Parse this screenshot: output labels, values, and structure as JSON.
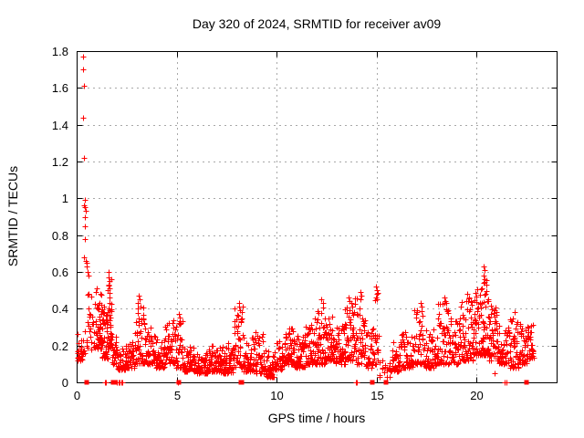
{
  "chart_data": {
    "type": "scatter",
    "title": "Day 320 of 2024, SRMTID for receiver av09",
    "xlabel": "GPS time / hours",
    "ylabel": "SRMTID / TECUs",
    "xlim": [
      0,
      24
    ],
    "ylim": [
      0,
      1.8
    ],
    "xticks": {
      "values": [
        0,
        5,
        10,
        15,
        20
      ],
      "labels": [
        "0",
        "5",
        "10",
        "15",
        "20"
      ]
    },
    "yticks": {
      "values": [
        0,
        0.2,
        0.4,
        0.6,
        0.8,
        1.0,
        1.2,
        1.4,
        1.6,
        1.8
      ],
      "labels": [
        "0",
        "0.2",
        "0.4",
        "0.6",
        "0.8",
        "1",
        "1.2",
        "1.4",
        "1.6",
        "1.8"
      ]
    },
    "grid": true,
    "legend": "none",
    "marker": {
      "shape": "plus",
      "color": "#ff0000",
      "size": 7
    },
    "colors": {
      "points": "#ff0000",
      "border": "#000000",
      "grid": "#a8a8a8",
      "text": "#000000",
      "background": "#ffffff"
    },
    "seed": 7,
    "profile_bins_format": [
      "t_start_hours",
      "t_end_hours",
      "n_points",
      "y_min_TECUs",
      "y_max_TECUs"
    ],
    "profile": [
      [
        0.02,
        0.28,
        24,
        0.12,
        0.27
      ],
      [
        0.28,
        0.52,
        10,
        0.15,
        0.3
      ],
      [
        0.52,
        0.95,
        26,
        0.18,
        0.5
      ],
      [
        0.95,
        1.25,
        48,
        0.18,
        0.52
      ],
      [
        1.25,
        1.55,
        46,
        0.13,
        0.42
      ],
      [
        1.55,
        1.75,
        30,
        0.18,
        0.58
      ],
      [
        1.75,
        2.0,
        24,
        0.1,
        0.25
      ],
      [
        2.0,
        2.5,
        40,
        0.07,
        0.2
      ],
      [
        2.5,
        2.9,
        38,
        0.08,
        0.22
      ],
      [
        2.9,
        3.4,
        50,
        0.1,
        0.44
      ],
      [
        3.4,
        3.9,
        46,
        0.1,
        0.3
      ],
      [
        3.9,
        4.4,
        44,
        0.08,
        0.25
      ],
      [
        4.4,
        4.9,
        46,
        0.1,
        0.34
      ],
      [
        4.9,
        5.3,
        36,
        0.08,
        0.34
      ],
      [
        5.3,
        6.0,
        62,
        0.06,
        0.2
      ],
      [
        6.0,
        6.6,
        58,
        0.05,
        0.18
      ],
      [
        6.6,
        7.2,
        60,
        0.06,
        0.2
      ],
      [
        7.2,
        7.8,
        60,
        0.05,
        0.22
      ],
      [
        7.8,
        8.35,
        52,
        0.08,
        0.42
      ],
      [
        8.35,
        8.9,
        50,
        0.06,
        0.25
      ],
      [
        8.9,
        9.4,
        46,
        0.05,
        0.28
      ],
      [
        9.4,
        9.9,
        38,
        0.03,
        0.18
      ],
      [
        9.9,
        10.4,
        46,
        0.07,
        0.25
      ],
      [
        10.4,
        10.9,
        50,
        0.1,
        0.3
      ],
      [
        10.9,
        11.4,
        50,
        0.08,
        0.26
      ],
      [
        11.4,
        11.9,
        52,
        0.1,
        0.32
      ],
      [
        11.9,
        12.4,
        54,
        0.1,
        0.42
      ],
      [
        12.4,
        12.9,
        54,
        0.12,
        0.38
      ],
      [
        12.9,
        13.4,
        50,
        0.1,
        0.35
      ],
      [
        13.4,
        13.9,
        54,
        0.12,
        0.44
      ],
      [
        13.9,
        14.45,
        46,
        0.1,
        0.47
      ],
      [
        14.45,
        14.8,
        28,
        0.08,
        0.3
      ],
      [
        14.8,
        15.1,
        24,
        0.1,
        0.5
      ],
      [
        15.1,
        15.7,
        16,
        0.03,
        0.15
      ],
      [
        15.7,
        16.2,
        40,
        0.06,
        0.22
      ],
      [
        16.2,
        16.8,
        50,
        0.08,
        0.28
      ],
      [
        16.8,
        17.4,
        52,
        0.1,
        0.4
      ],
      [
        17.4,
        18.0,
        50,
        0.08,
        0.3
      ],
      [
        18.0,
        18.6,
        54,
        0.1,
        0.44
      ],
      [
        18.6,
        19.2,
        54,
        0.1,
        0.35
      ],
      [
        19.2,
        19.8,
        58,
        0.12,
        0.46
      ],
      [
        19.8,
        20.25,
        54,
        0.15,
        0.52
      ],
      [
        20.25,
        20.6,
        48,
        0.15,
        0.58
      ],
      [
        20.6,
        21.1,
        50,
        0.12,
        0.42
      ],
      [
        21.1,
        21.6,
        44,
        0.1,
        0.34
      ],
      [
        21.6,
        22.1,
        44,
        0.08,
        0.36
      ],
      [
        22.1,
        22.5,
        40,
        0.1,
        0.32
      ],
      [
        22.5,
        22.85,
        36,
        0.13,
        0.33
      ]
    ],
    "outliers": [
      [
        0.33,
        1.77
      ],
      [
        0.34,
        1.7
      ],
      [
        0.35,
        1.61
      ],
      [
        0.34,
        1.44
      ],
      [
        0.35,
        1.22
      ],
      [
        0.4,
        0.99
      ],
      [
        0.38,
        0.96
      ],
      [
        0.42,
        0.95
      ],
      [
        0.44,
        0.93
      ],
      [
        0.41,
        0.9
      ],
      [
        0.42,
        0.85
      ],
      [
        0.43,
        0.78
      ],
      [
        0.38,
        0.68
      ],
      [
        0.46,
        0.66
      ],
      [
        0.5,
        0.65
      ],
      [
        0.52,
        0.63
      ],
      [
        0.57,
        0.6
      ],
      [
        0.6,
        0.58
      ],
      [
        1.58,
        0.6
      ],
      [
        1.61,
        0.57
      ],
      [
        1.63,
        0.55
      ],
      [
        1.6,
        0.53
      ],
      [
        1.64,
        0.51
      ],
      [
        1.57,
        0.5
      ],
      [
        3.1,
        0.47
      ],
      [
        3.15,
        0.45
      ],
      [
        3.05,
        0.43
      ],
      [
        5.12,
        0.37
      ],
      [
        5.15,
        0.35
      ],
      [
        8.1,
        0.43
      ],
      [
        8.13,
        0.41
      ],
      [
        8.16,
        0.39
      ],
      [
        12.25,
        0.45
      ],
      [
        12.3,
        0.43
      ],
      [
        13.6,
        0.46
      ],
      [
        13.65,
        0.44
      ],
      [
        14.2,
        0.49
      ],
      [
        14.23,
        0.47
      ],
      [
        14.17,
        0.45
      ],
      [
        14.97,
        0.52
      ],
      [
        15.0,
        0.5
      ],
      [
        15.02,
        0.48
      ],
      [
        14.99,
        0.45
      ],
      [
        17.2,
        0.43
      ],
      [
        17.25,
        0.41
      ],
      [
        18.4,
        0.46
      ],
      [
        18.43,
        0.44
      ],
      [
        19.55,
        0.48
      ],
      [
        19.6,
        0.46
      ],
      [
        20.35,
        0.63
      ],
      [
        20.38,
        0.61
      ],
      [
        20.33,
        0.58
      ],
      [
        20.4,
        0.56
      ],
      [
        20.36,
        0.54
      ],
      [
        21.9,
        0.38
      ],
      [
        9.55,
        0.03
      ],
      [
        15.63,
        0.03
      ],
      [
        20.9,
        0.05
      ]
    ],
    "zero_squares": [
      0.5,
      1.82,
      1.87,
      1.93,
      5.12,
      8.2,
      8.24,
      14.8,
      15.45,
      22.5
    ],
    "zero_ticks": [
      1.43,
      1.48,
      2.03,
      2.08,
      2.15,
      2.22,
      2.3,
      5.05,
      13.95,
      14.0,
      21.42,
      21.48
    ]
  }
}
